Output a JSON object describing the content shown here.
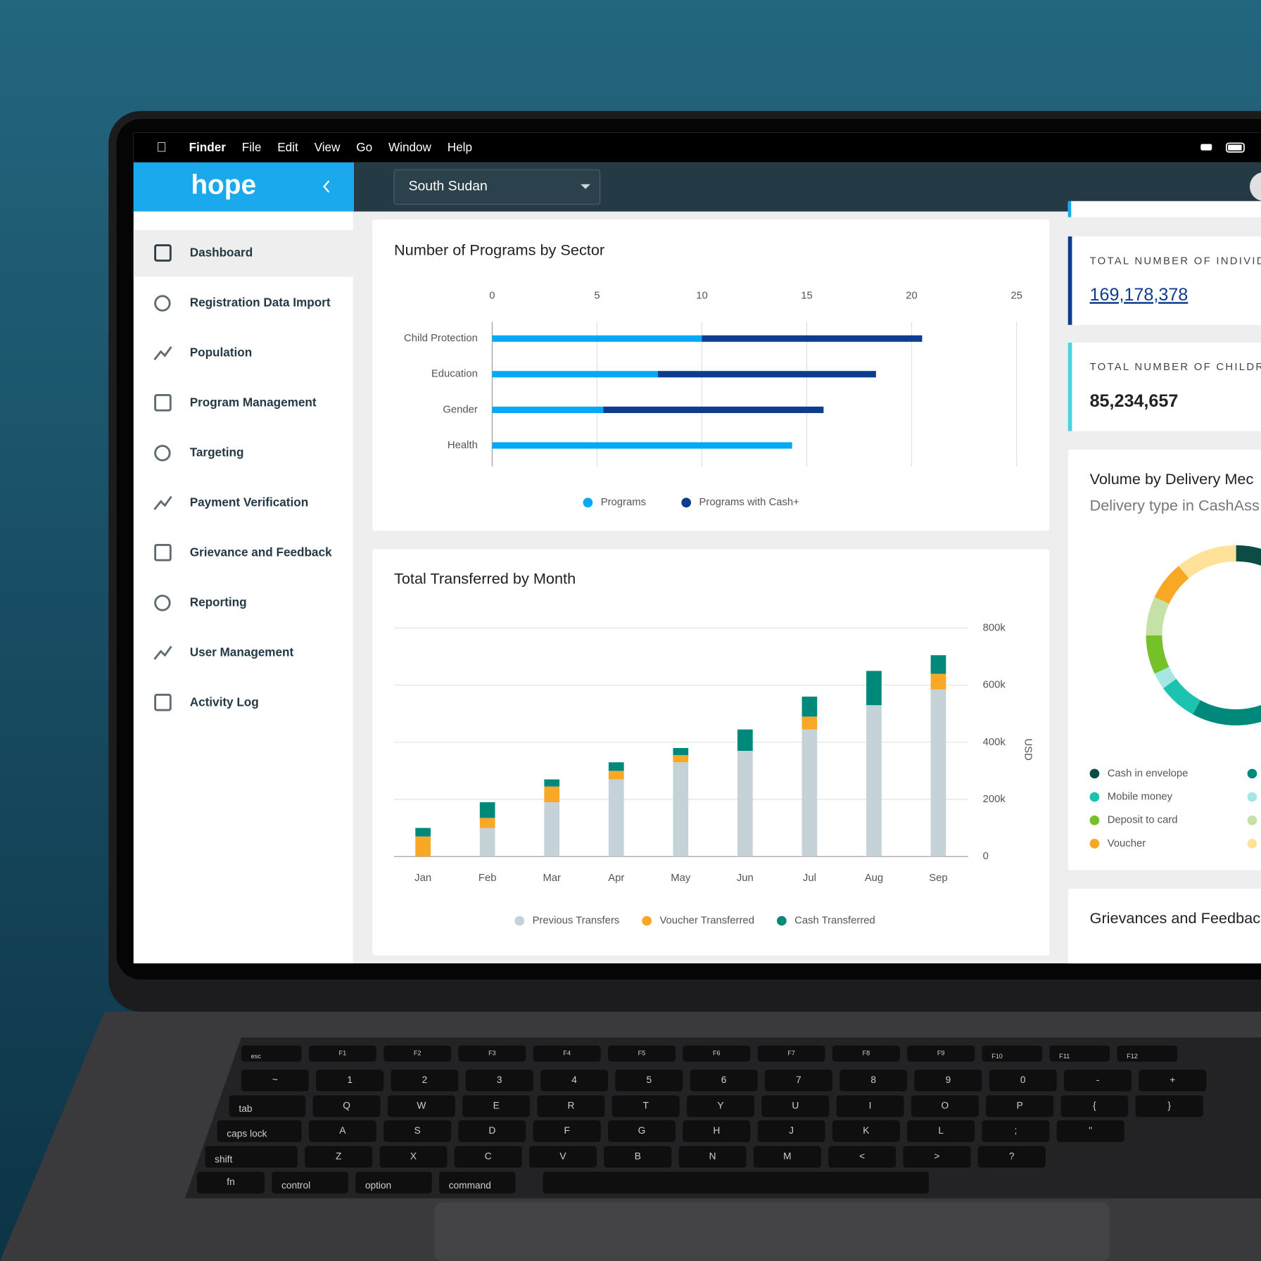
{
  "menu_bar": {
    "items": [
      "Finder",
      "File",
      "Edit",
      "View",
      "Go",
      "Window",
      "Help"
    ]
  },
  "sidebar": {
    "logo": "hope",
    "active": 0,
    "nav": [
      "Dashboard",
      "Registration Data Import",
      "Population",
      "Program Management",
      "Targeting",
      "Payment Verification",
      "Grievance and Feedback",
      "Reporting",
      "User Management",
      "Activity Log"
    ]
  },
  "header": {
    "country": "South Sudan"
  },
  "stat_cards": [
    {
      "label": "TOTAL NUMBER OF INDIVID",
      "value": "169,178,378",
      "accent": "#0d3c8e",
      "link": true
    },
    {
      "label": "TOTAL NUMBER OF CHILDR",
      "value": "85,234,657",
      "accent": "#4dd0e1",
      "link": false
    }
  ],
  "chart_data": [
    {
      "type": "bar",
      "orientation": "horizontal",
      "stacked": true,
      "title": "Number of Programs by Sector",
      "categories": [
        "Child Protection",
        "Education",
        "Gender",
        "Health"
      ],
      "series": [
        {
          "name": "Programs",
          "color": "#03a9f4",
          "values": [
            10,
            7.9,
            5.3,
            14.3
          ]
        },
        {
          "name": "Programs with Cash+",
          "color": "#0d3c8e",
          "values": [
            10.5,
            10.4,
            10.5,
            0
          ]
        }
      ],
      "xlim": [
        0,
        25
      ],
      "xticks": [
        0,
        5,
        10,
        15,
        20,
        25
      ],
      "grid": true
    },
    {
      "type": "bar",
      "orientation": "vertical",
      "stacked": true,
      "title": "Total Transferred by Month",
      "ylabel": "USD",
      "categories": [
        "Jan",
        "Feb",
        "Mar",
        "Apr",
        "May",
        "Jun",
        "Jul",
        "Aug",
        "Sep"
      ],
      "series": [
        {
          "name": "Previous Transfers",
          "color": "#c5d3d9",
          "values": [
            0,
            100000,
            190000,
            270000,
            330000,
            370000,
            445000,
            530000,
            585000
          ]
        },
        {
          "name": "Voucher Transferred",
          "color": "#f9a825",
          "values": [
            70000,
            35000,
            55000,
            30000,
            25000,
            0,
            45000,
            0,
            55000
          ]
        },
        {
          "name": "Cash Transferred",
          "color": "#00897b",
          "values": [
            30000,
            55000,
            25000,
            30000,
            25000,
            75000,
            70000,
            120000,
            65000
          ]
        }
      ],
      "ylim": [
        0,
        800000
      ],
      "yticks": [
        0,
        {
          "value": 200000,
          "label": "200k"
        },
        {
          "value": 400000,
          "label": "400k"
        },
        {
          "value": 600000,
          "label": "600k"
        },
        {
          "value": 800000,
          "label": "800k"
        }
      ],
      "grid": true
    },
    {
      "type": "pie",
      "title": "Volume by Delivery Mec",
      "subtitle": "Delivery type in CashAss",
      "categories": [
        "Cash in envelope",
        null,
        "Mobile money",
        null,
        "Deposit to card",
        null,
        "Voucher",
        null
      ],
      "values": [
        33,
        25,
        7,
        3,
        7,
        7,
        7,
        11
      ],
      "colors": [
        "#0b4d45",
        "#00897b",
        "#1cc4b0",
        "#a6e6e4",
        "#74c12a",
        "#c5e1a5",
        "#f9a825",
        "#ffe29a"
      ]
    }
  ],
  "grievances": {
    "title": "Grievances and Feedbac"
  },
  "keyboard": {
    "rows": [
      [
        "esc",
        "F1",
        "F2",
        "F3",
        "F4",
        "F5",
        "F6",
        "F7",
        "F8",
        "F9",
        "F10",
        "F11",
        "F12"
      ],
      [
        "~",
        "1",
        "2",
        "3",
        "4",
        "5",
        "6",
        "7",
        "8",
        "9",
        "0",
        "-",
        "+"
      ],
      [
        "tab",
        "Q",
        "W",
        "E",
        "R",
        "T",
        "Y",
        "U",
        "I",
        "O",
        "P",
        "{",
        "}"
      ],
      [
        "caps lock",
        "A",
        "S",
        "D",
        "F",
        "G",
        "H",
        "J",
        "K",
        "L",
        ";",
        "\""
      ],
      [
        "shift",
        "Z",
        "X",
        "C",
        "V",
        "B",
        "N",
        "M",
        "<",
        ">",
        "?"
      ],
      [
        "fn",
        "control",
        "option",
        "command"
      ]
    ]
  }
}
